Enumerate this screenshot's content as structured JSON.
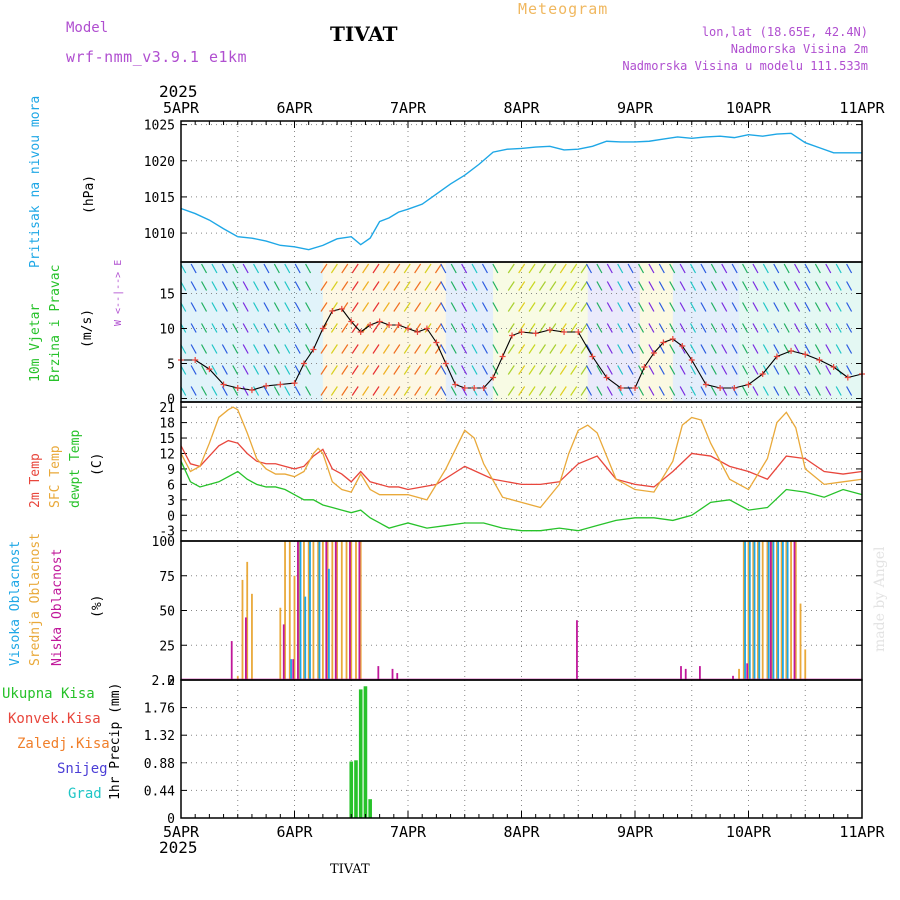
{
  "header": {
    "model_label": "Model",
    "model_name": "wrf-nmm_v3.9.1 e1km",
    "station": "TIVAT",
    "chart_kind": "Meteogram",
    "coords": "lon,lat (18.65E, 42.4N)",
    "elevation": "Nadmorska Visina 2m",
    "model_elevation": "Nadmorska Visina u modelu 111.533m",
    "year": "2025"
  },
  "footer": {
    "station": "TIVAT",
    "credit": "made by Angel"
  },
  "colors": {
    "pressure": "#1ea7e6",
    "t2m": "#e8463c",
    "sfc": "#e9a93a",
    "dew": "#27c22a",
    "high_cloud": "#1ea7e6",
    "mid_cloud": "#e9a93a",
    "low_cloud": "#c0179a",
    "precip_total": "#27c22a",
    "precip_conv": "#e8463c",
    "precip_frozen": "#f07f2a",
    "snow": "#4b3ed6",
    "hail": "#1fc6c6"
  },
  "chart_data": [
    {
      "type": "line",
      "panel": "pressure",
      "ylabel_main": "Pritisak na nivou mora",
      "ylabel_unit": "(hPa)",
      "x_categories": [
        "5APR",
        "6APR",
        "7APR",
        "8APR",
        "9APR",
        "10APR",
        "11APR"
      ],
      "x_hours": [
        0,
        24,
        48,
        72,
        96,
        120,
        144
      ],
      "ylim": [
        1006,
        1025.5
      ],
      "yticks": [
        1010,
        1015,
        1020,
        1025
      ],
      "grid": true,
      "series": [
        {
          "x": [
            0,
            3,
            6,
            9,
            12,
            15,
            18,
            21,
            24,
            27,
            30,
            33,
            36,
            38,
            40,
            42,
            44,
            46,
            48,
            51,
            54,
            57,
            60,
            63,
            66,
            69,
            72,
            75,
            78,
            81,
            84,
            87,
            90,
            93,
            96,
            99,
            102,
            105,
            108,
            111,
            114,
            117,
            120,
            123,
            126,
            129,
            132,
            135,
            138,
            141,
            144
          ],
          "values": [
            1013.4,
            1012.7,
            1011.8,
            1010.6,
            1009.5,
            1009.3,
            1008.9,
            1008.3,
            1008.1,
            1007.7,
            1008.3,
            1009.2,
            1009.5,
            1008.4,
            1009.3,
            1011.6,
            1012.1,
            1012.9,
            1013.3,
            1014.0,
            1015.4,
            1016.8,
            1018.0,
            1019.5,
            1021.2,
            1021.6,
            1021.7,
            1021.9,
            1022.0,
            1021.5,
            1021.6,
            1022.0,
            1022.7,
            1022.6,
            1022.6,
            1022.7,
            1023.0,
            1023.3,
            1023.1,
            1023.3,
            1023.4,
            1023.2,
            1023.6,
            1023.4,
            1023.7,
            1023.8,
            1022.5,
            1021.8,
            1021.1,
            1021.1,
            1021.1
          ]
        }
      ]
    },
    {
      "type": "line",
      "panel": "wind",
      "ylabel_main": "10m Vjetar",
      "ylabel_sub": "Brzina i Pravac",
      "ylabel_unit": "(m/s)",
      "compass": "W <--|--> E",
      "ylim": [
        -0.5,
        19.5
      ],
      "yticks": [
        0,
        5,
        10,
        15
      ],
      "grid": true,
      "series": [
        {
          "name": "speed",
          "x": [
            0,
            3,
            6,
            9,
            12,
            15,
            18,
            21,
            24,
            26,
            28,
            30,
            32,
            34,
            36,
            38,
            40,
            42,
            44,
            46,
            48,
            50,
            52,
            54,
            56,
            58,
            60,
            62,
            64,
            66,
            68,
            70,
            72,
            75,
            78,
            81,
            84,
            87,
            90,
            93,
            96,
            98,
            100,
            102,
            104,
            106,
            108,
            111,
            114,
            117,
            120,
            123,
            126,
            129,
            132,
            135,
            138,
            141,
            144
          ],
          "values": [
            5.5,
            5.5,
            4.2,
            2.0,
            1.5,
            1.2,
            1.8,
            2.0,
            2.2,
            5.0,
            7.0,
            10.0,
            12.5,
            12.8,
            11.0,
            9.5,
            10.5,
            11.0,
            10.5,
            10.5,
            10.0,
            9.5,
            10.0,
            8.0,
            5.0,
            2.0,
            1.5,
            1.5,
            1.5,
            3.0,
            6.0,
            9.0,
            9.5,
            9.3,
            9.8,
            9.5,
            9.5,
            6.0,
            3.0,
            1.5,
            1.5,
            4.5,
            6.5,
            8.0,
            8.5,
            7.5,
            5.5,
            2.0,
            1.5,
            1.5,
            2.0,
            3.5,
            6.0,
            6.8,
            6.3,
            5.5,
            4.5,
            3.0,
            3.5
          ]
        }
      ]
    },
    {
      "type": "line",
      "panel": "temperature",
      "ylabel_t2m": "2m Temp",
      "ylabel_sfc": "SFC Temp",
      "ylabel_dew": "dewpt Temp",
      "ylabel_unit": "(C)",
      "ylim": [
        -5,
        22
      ],
      "yticks": [
        -3,
        0,
        3,
        6,
        9,
        12,
        15,
        18,
        21
      ],
      "grid": true,
      "series": [
        {
          "name": "2m Temp",
          "x": [
            0,
            2,
            4,
            6,
            8,
            10,
            12,
            14,
            16,
            18,
            20,
            22,
            24,
            26,
            28,
            30,
            32,
            34,
            36,
            38,
            40,
            42,
            44,
            46,
            48,
            54,
            60,
            66,
            72,
            76,
            80,
            84,
            88,
            92,
            96,
            100,
            104,
            108,
            112,
            116,
            120,
            124,
            128,
            132,
            136,
            140,
            144
          ],
          "values": [
            13.5,
            10.0,
            9.5,
            11.5,
            13.5,
            14.5,
            14.0,
            12.0,
            10.5,
            10.0,
            10.0,
            9.5,
            9.0,
            9.5,
            11.5,
            12.8,
            9.0,
            8.0,
            6.5,
            8.5,
            6.5,
            6.0,
            5.5,
            5.5,
            5.0,
            6.0,
            9.5,
            7.0,
            6.0,
            6.0,
            6.5,
            10.0,
            11.5,
            7.0,
            6.0,
            5.5,
            8.5,
            12.0,
            11.5,
            9.5,
            8.5,
            7.0,
            11.5,
            11.0,
            8.5,
            8.0,
            8.5
          ]
        },
        {
          "name": "SFC Temp",
          "x": [
            0,
            2,
            4,
            6,
            8,
            10,
            11,
            12,
            14,
            16,
            18,
            20,
            22,
            24,
            26,
            28,
            29,
            30,
            32,
            34,
            36,
            38,
            40,
            42,
            44,
            46,
            48,
            50,
            52,
            56,
            60,
            62,
            64,
            68,
            72,
            76,
            80,
            82,
            84,
            86,
            88,
            92,
            96,
            100,
            104,
            106,
            108,
            110,
            112,
            116,
            120,
            124,
            126,
            128,
            130,
            132,
            136,
            140,
            144
          ],
          "values": [
            12.0,
            8.5,
            9.5,
            14.0,
            19.0,
            20.5,
            21.0,
            20.5,
            16.0,
            11.0,
            9.0,
            8.0,
            8.0,
            7.5,
            8.5,
            12.0,
            13.0,
            12.0,
            6.5,
            5.0,
            4.5,
            8.0,
            5.0,
            4.0,
            4.0,
            4.0,
            4.0,
            3.5,
            3.0,
            9.0,
            16.5,
            15.0,
            10.0,
            3.5,
            2.5,
            1.5,
            6.0,
            12.0,
            16.5,
            17.5,
            16.0,
            7.0,
            5.0,
            4.5,
            10.5,
            17.5,
            19.0,
            18.5,
            14.0,
            7.0,
            5.0,
            11.0,
            18.0,
            20.0,
            17.0,
            9.0,
            6.0,
            6.5,
            7.0
          ]
        },
        {
          "name": "dewpt Temp",
          "x": [
            0,
            2,
            4,
            6,
            8,
            10,
            12,
            14,
            16,
            18,
            20,
            22,
            24,
            26,
            28,
            30,
            32,
            34,
            36,
            38,
            40,
            42,
            44,
            46,
            48,
            52,
            56,
            60,
            64,
            68,
            72,
            76,
            80,
            84,
            88,
            92,
            96,
            100,
            104,
            108,
            112,
            116,
            120,
            124,
            128,
            132,
            136,
            140,
            144
          ],
          "values": [
            10.5,
            6.5,
            5.5,
            6.0,
            6.5,
            7.5,
            8.5,
            7.0,
            6.0,
            5.5,
            5.5,
            5.0,
            4.0,
            3.0,
            3.0,
            2.0,
            1.5,
            1.0,
            0.5,
            1.0,
            -0.5,
            -1.5,
            -2.5,
            -2.0,
            -1.5,
            -2.5,
            -2.0,
            -1.5,
            -1.5,
            -2.5,
            -3.0,
            -3.0,
            -2.5,
            -3.0,
            -2.0,
            -1.0,
            -0.5,
            -0.5,
            -1.0,
            0.0,
            2.5,
            3.0,
            1.0,
            1.5,
            5.0,
            4.5,
            3.5,
            5.0,
            4.0
          ]
        }
      ]
    },
    {
      "type": "bar",
      "panel": "cloud",
      "ylabel_high": "Visoka Oblacnost",
      "ylabel_mid": "Srednja Oblacnost",
      "ylabel_low": "Niska Oblacnost",
      "ylabel_unit": "(%)",
      "ylim": [
        0,
        100
      ],
      "yticks": [
        0,
        25,
        50,
        75,
        100
      ],
      "grid": true,
      "series": [
        {
          "name": "Srednja Oblacnost",
          "x": [
            12,
            13,
            14,
            15,
            21,
            22,
            23,
            24,
            25,
            26,
            27,
            28,
            29,
            30,
            31,
            32,
            33,
            34,
            35,
            36,
            37,
            38,
            118,
            119,
            120,
            121,
            122,
            123,
            124,
            125,
            126,
            127,
            128,
            129,
            130,
            131,
            132
          ],
          "values": [
            3,
            72,
            85,
            62,
            52,
            100,
            100,
            75,
            100,
            100,
            100,
            100,
            100,
            100,
            100,
            100,
            100,
            100,
            100,
            100,
            100,
            100,
            8,
            100,
            100,
            100,
            100,
            100,
            100,
            100,
            100,
            100,
            100,
            100,
            100,
            55,
            22
          ]
        },
        {
          "name": "Visoka Oblacnost",
          "x": [
            23,
            25,
            26,
            27,
            29,
            31,
            119,
            120,
            121,
            122,
            124,
            125,
            126,
            127,
            128
          ],
          "values": [
            15,
            100,
            60,
            100,
            100,
            80,
            100,
            100,
            100,
            100,
            100,
            100,
            100,
            100,
            100
          ]
        },
        {
          "name": "Niska Oblacnost",
          "x": [
            11,
            14,
            22,
            24,
            25,
            31,
            33,
            36,
            38,
            42,
            45,
            46,
            84,
            106,
            107,
            110,
            117,
            120,
            125,
            130
          ],
          "values": [
            28,
            45,
            40,
            15,
            100,
            100,
            100,
            100,
            100,
            10,
            8,
            5,
            43,
            10,
            8,
            10,
            3,
            12,
            100,
            100
          ]
        }
      ]
    },
    {
      "type": "bar",
      "panel": "precip",
      "legend": [
        "Ukupna Kisa",
        "Konvek.Kisa",
        "Zaledj.Kisa",
        "Snijeg",
        "Grad"
      ],
      "ylabel_unit": "1hr Precip (mm)",
      "ylim": [
        0,
        2.2
      ],
      "yticks": [
        "0",
        "0.44",
        "0.88",
        "1.32",
        "1.76",
        "2.2"
      ],
      "grid": true,
      "series": [
        {
          "name": "Ukupna Kisa",
          "x": [
            36,
            37,
            38,
            39,
            40
          ],
          "values": [
            0.9,
            0.92,
            2.05,
            2.1,
            0.3
          ]
        }
      ]
    }
  ]
}
